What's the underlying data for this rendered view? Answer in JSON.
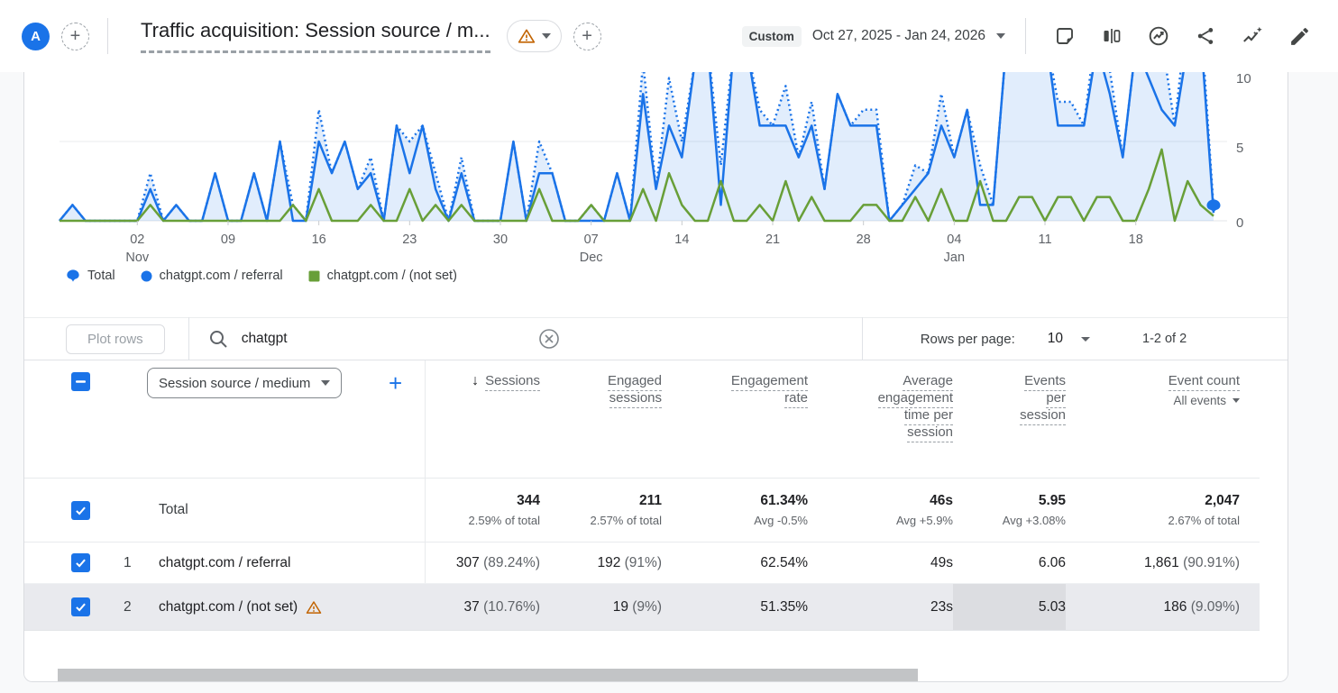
{
  "colors": {
    "blue": "#1a73e8",
    "green": "#689F38",
    "area_fill": "rgba(26,115,232,0.13)",
    "warning": "#C26401",
    "grid": "#e9ebee",
    "axis_text": "#5f6368"
  },
  "header": {
    "avatar": "A",
    "title": "Traffic acquisition: Session source / m...",
    "custom_badge": "Custom",
    "date_range": "Oct 27, 2025 - Jan 24, 2026",
    "icons": [
      "note-icon",
      "comparison-icon",
      "insights-icon",
      "share-icon",
      "sparkline-insights-icon",
      "edit-pencil-icon"
    ]
  },
  "chart_data": {
    "type": "line",
    "title": "",
    "xlabel": "",
    "ylabel": "",
    "ylim": [
      0,
      10
    ],
    "y_ticks": [
      "0",
      "5",
      "10"
    ],
    "x_ticks": [
      {
        "day": 6,
        "label": "02",
        "sub": "Nov"
      },
      {
        "day": 13,
        "label": "09",
        "sub": ""
      },
      {
        "day": 20,
        "label": "16",
        "sub": ""
      },
      {
        "day": 27,
        "label": "23",
        "sub": ""
      },
      {
        "day": 34,
        "label": "30",
        "sub": ""
      },
      {
        "day": 41,
        "label": "07",
        "sub": "Dec"
      },
      {
        "day": 48,
        "label": "14",
        "sub": ""
      },
      {
        "day": 55,
        "label": "21",
        "sub": ""
      },
      {
        "day": 62,
        "label": "28",
        "sub": ""
      },
      {
        "day": 69,
        "label": "04",
        "sub": "Jan"
      },
      {
        "day": 76,
        "label": "11",
        "sub": ""
      },
      {
        "day": 83,
        "label": "18",
        "sub": ""
      }
    ],
    "date_start": "Oct 27, 2025",
    "date_end": "Jan 24, 2026",
    "series": [
      {
        "name": "Total",
        "style": "dotted",
        "color": "#1a73e8",
        "values": [
          0,
          1,
          0,
          0,
          0,
          0,
          0,
          3,
          0,
          1,
          0,
          0,
          3,
          0,
          0,
          3,
          0,
          5,
          1,
          0,
          7,
          3,
          5,
          2,
          4,
          0,
          6,
          5,
          6,
          3,
          0,
          4,
          0,
          0,
          0,
          5,
          0,
          5,
          3,
          0,
          0,
          1,
          0,
          3,
          0,
          10,
          2,
          9,
          5,
          10,
          11,
          3.5,
          11,
          11,
          7,
          6,
          8.5,
          4,
          7.5,
          2,
          8,
          6,
          7,
          7,
          0,
          1,
          3.5,
          3,
          8,
          4,
          7,
          3.5,
          1,
          11,
          13.5,
          13.5,
          12,
          7.5,
          7.5,
          6,
          12.5,
          9.5,
          4,
          11,
          11,
          11.5,
          6,
          13.5,
          13,
          0.8
        ]
      },
      {
        "name": "chatgpt.com / referral",
        "style": "solid",
        "color": "#1a73e8",
        "values": [
          0,
          1,
          0,
          0,
          0,
          0,
          0,
          2,
          0,
          1,
          0,
          0,
          3,
          0,
          0,
          3,
          0,
          5,
          0,
          0,
          5,
          3,
          5,
          2,
          3,
          0,
          6,
          3,
          6,
          2,
          0,
          3,
          0,
          0,
          0,
          5,
          0,
          3,
          3,
          0,
          0,
          0,
          0,
          3,
          0,
          8,
          2,
          6,
          4,
          10,
          11,
          1,
          11,
          11,
          6,
          6,
          6,
          4,
          6,
          2,
          8,
          6,
          6,
          6,
          0,
          1,
          2,
          3,
          6,
          4,
          7,
          1,
          1,
          11,
          12,
          12,
          12,
          6,
          6,
          6,
          11,
          8,
          4,
          11,
          9,
          7,
          6,
          11,
          12,
          0.5
        ]
      },
      {
        "name": "chatgpt.com / (not set)",
        "style": "solid",
        "color": "#689F38",
        "values": [
          0,
          0,
          0,
          0,
          0,
          0,
          0,
          1,
          0,
          0,
          0,
          0,
          0,
          0,
          0,
          0,
          0,
          0,
          1,
          0,
          2,
          0,
          0,
          0,
          1,
          0,
          0,
          2,
          0,
          1,
          0,
          1,
          0,
          0,
          0,
          0,
          0,
          2,
          0,
          0,
          0,
          1,
          0,
          0,
          0,
          2,
          0,
          3,
          1,
          0,
          0,
          2.5,
          0,
          0,
          1,
          0,
          2.5,
          0,
          1.5,
          0,
          0,
          0,
          1,
          1,
          0,
          0,
          1.5,
          0,
          2,
          0,
          0,
          2.5,
          0,
          0,
          1.5,
          1.5,
          0,
          1.5,
          1.5,
          0,
          1.5,
          1.5,
          0,
          0,
          2,
          4.5,
          0,
          2.5,
          1,
          0.3
        ]
      }
    ],
    "legend": [
      {
        "label": "Total",
        "marker": "total-pin"
      },
      {
        "label": "chatgpt.com / referral",
        "marker": "circle"
      },
      {
        "label": "chatgpt.com / (not set)",
        "marker": "square"
      }
    ]
  },
  "table_controls": {
    "plot_rows": "Plot rows",
    "search_value": "chatgpt",
    "rows_per_page_label": "Rows per page:",
    "rows_per_page_value": "10",
    "pager": "1-2 of 2"
  },
  "table": {
    "dimension_selector": "Session source / medium",
    "columns": [
      {
        "id": "sessions",
        "lines": [
          "Sessions"
        ],
        "sorted": true
      },
      {
        "id": "engaged-sessions",
        "lines": [
          "Engaged",
          "sessions"
        ]
      },
      {
        "id": "engagement-rate",
        "lines": [
          "Engagement",
          "rate"
        ]
      },
      {
        "id": "avg-engagement-time",
        "lines": [
          "Average",
          "engagement",
          "time per",
          "session"
        ]
      },
      {
        "id": "events-per-session",
        "lines": [
          "Events",
          "per",
          "session"
        ]
      },
      {
        "id": "event-count",
        "lines": [
          "Event count"
        ],
        "sub": "All events"
      }
    ],
    "total_row": {
      "label": "Total",
      "cells": [
        {
          "value": "344",
          "sub": "2.59% of total"
        },
        {
          "value": "211",
          "sub": "2.57% of total"
        },
        {
          "value": "61.34%",
          "sub": "Avg -0.5%"
        },
        {
          "value": "46s",
          "sub": "Avg +5.9%"
        },
        {
          "value": "5.95",
          "sub": "Avg +3.08%"
        },
        {
          "value": "2,047",
          "sub": "2.67% of total"
        }
      ]
    },
    "rows": [
      {
        "num": "1",
        "dimension": "chatgpt.com / referral",
        "warning": false,
        "highlighted": false,
        "cells": [
          {
            "v": "307",
            "p": "(89.24%)"
          },
          {
            "v": "192",
            "p": "(91%)"
          },
          {
            "v": "62.54%"
          },
          {
            "v": "49s"
          },
          {
            "v": "6.06"
          },
          {
            "v": "1,861",
            "p": "(90.91%)"
          }
        ]
      },
      {
        "num": "2",
        "dimension": "chatgpt.com / (not set)",
        "warning": true,
        "highlighted": true,
        "highlight_cell": 4,
        "cells": [
          {
            "v": "37",
            "p": "(10.76%)"
          },
          {
            "v": "19",
            "p": "(9%)"
          },
          {
            "v": "51.35%"
          },
          {
            "v": "23s"
          },
          {
            "v": "5.03"
          },
          {
            "v": "186",
            "p": "(9.09%)"
          }
        ]
      }
    ]
  }
}
